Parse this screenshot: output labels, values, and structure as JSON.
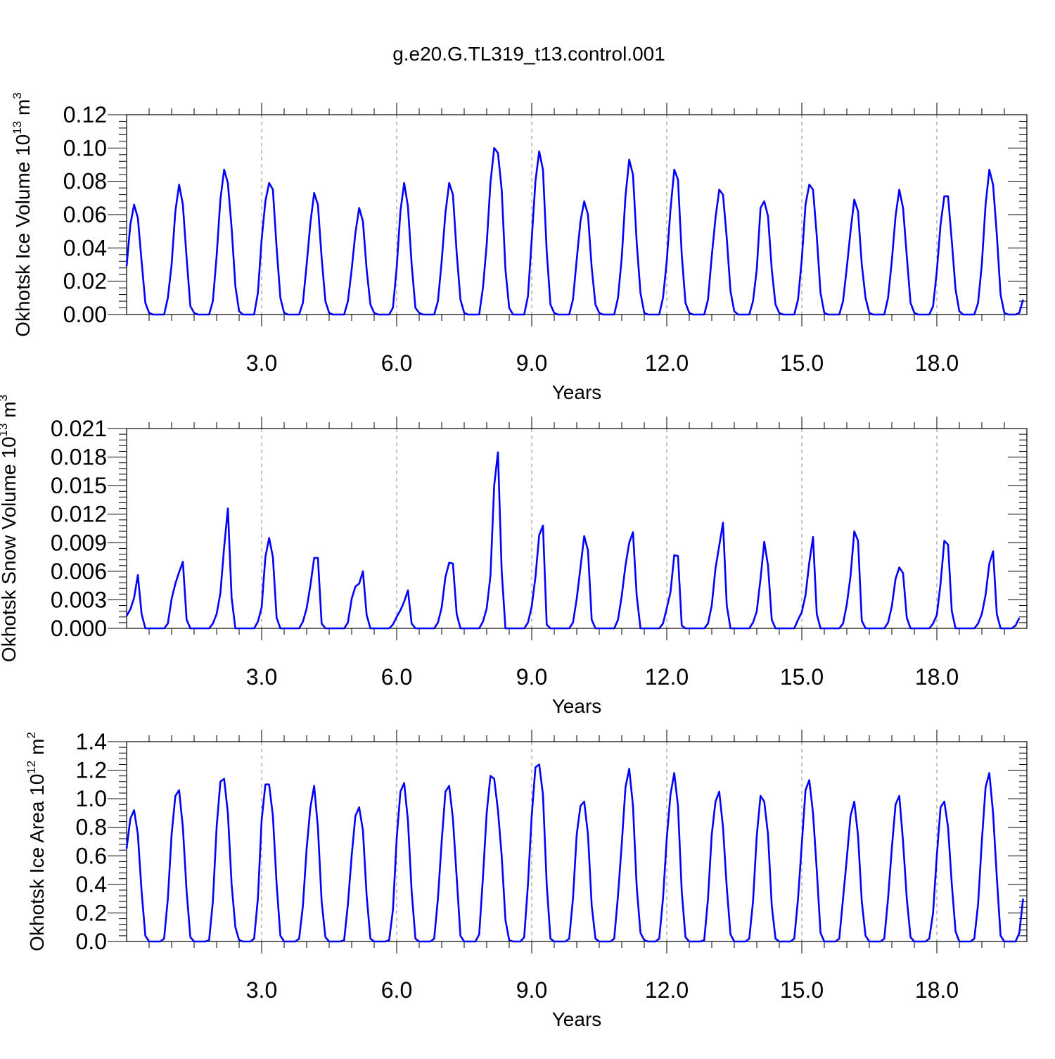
{
  "chart_title": "g.e20.G.TL319_t13.control.001",
  "colors": {
    "line": "#0000ff",
    "axis": "#000000",
    "refline": "#888888",
    "background": "#ffffff"
  },
  "chart_data": [
    {
      "type": "line",
      "ylabel": "Okhotsk Ice Volume 10",
      "ylabel_exp": "13",
      "ylabel_unit": " m",
      "ylabel_unit_exp": "3",
      "xlabel": "Years",
      "xlim": [
        0,
        20.0
      ],
      "ylim": [
        0,
        0.12
      ],
      "yticks": [
        "0.00",
        "0.02",
        "0.04",
        "0.06",
        "0.08",
        "0.10",
        "0.12"
      ],
      "xticks": [
        "3.0",
        "6.0",
        "9.0",
        "12.0",
        "15.0",
        "18.0"
      ],
      "grid": "dashed vertical lines at major x ticks",
      "series": [
        {
          "x_start": 0,
          "x_step": 0.08333,
          "values": [
            0.029,
            0.054,
            0.066,
            0.058,
            0.032,
            0.007,
            0.001,
            0.0,
            0.0,
            0.0,
            0.0,
            0.01,
            0.03,
            0.062,
            0.078,
            0.066,
            0.034,
            0.005,
            0.001,
            0.0,
            0.0,
            0.0,
            0.0,
            0.008,
            0.035,
            0.069,
            0.087,
            0.079,
            0.052,
            0.017,
            0.002,
            0.0,
            0.0,
            0.0,
            0.0,
            0.013,
            0.045,
            0.068,
            0.079,
            0.075,
            0.04,
            0.01,
            0.001,
            0.0,
            0.0,
            0.0,
            0.0,
            0.007,
            0.03,
            0.055,
            0.073,
            0.066,
            0.034,
            0.008,
            0.001,
            0.0,
            0.0,
            0.0,
            0.0,
            0.008,
            0.027,
            0.049,
            0.064,
            0.056,
            0.027,
            0.006,
            0.001,
            0.0,
            0.0,
            0.0,
            0.0,
            0.004,
            0.028,
            0.062,
            0.079,
            0.065,
            0.03,
            0.004,
            0.001,
            0.0,
            0.0,
            0.0,
            0.0,
            0.008,
            0.032,
            0.061,
            0.079,
            0.072,
            0.037,
            0.009,
            0.001,
            0.0,
            0.0,
            0.0,
            0.0,
            0.016,
            0.042,
            0.079,
            0.1,
            0.097,
            0.075,
            0.027,
            0.004,
            0.0,
            0.0,
            0.0,
            0.0,
            0.011,
            0.045,
            0.08,
            0.098,
            0.087,
            0.038,
            0.006,
            0.001,
            0.0,
            0.0,
            0.0,
            0.0,
            0.009,
            0.033,
            0.056,
            0.068,
            0.06,
            0.028,
            0.006,
            0.001,
            0.0,
            0.0,
            0.0,
            0.0,
            0.01,
            0.034,
            0.071,
            0.093,
            0.084,
            0.043,
            0.013,
            0.001,
            0.0,
            0.0,
            0.0,
            0.0,
            0.01,
            0.032,
            0.063,
            0.087,
            0.081,
            0.036,
            0.007,
            0.001,
            0.0,
            0.0,
            0.0,
            0.0,
            0.009,
            0.035,
            0.058,
            0.075,
            0.072,
            0.046,
            0.014,
            0.002,
            0.0,
            0.0,
            0.0,
            0.0,
            0.008,
            0.027,
            0.064,
            0.068,
            0.059,
            0.027,
            0.006,
            0.001,
            0.0,
            0.0,
            0.0,
            0.0,
            0.009,
            0.033,
            0.066,
            0.078,
            0.075,
            0.047,
            0.013,
            0.001,
            0.0,
            0.0,
            0.0,
            0.0,
            0.008,
            0.028,
            0.05,
            0.069,
            0.062,
            0.03,
            0.01,
            0.001,
            0.0,
            0.0,
            0.0,
            0.0,
            0.01,
            0.032,
            0.059,
            0.075,
            0.064,
            0.035,
            0.007,
            0.001,
            0.0,
            0.0,
            0.0,
            0.0,
            0.005,
            0.026,
            0.054,
            0.071,
            0.071,
            0.044,
            0.015,
            0.002,
            0.0,
            0.0,
            0.0,
            0.0,
            0.007,
            0.03,
            0.066,
            0.087,
            0.078,
            0.048,
            0.012,
            0.001,
            0.0,
            0.0,
            0.0,
            0.001,
            0.009
          ]
        }
      ]
    },
    {
      "type": "line",
      "ylabel": "Okhotsk Snow Volume 10",
      "ylabel_exp": "13",
      "ylabel_unit": " m",
      "ylabel_unit_exp": "3",
      "xlabel": "Years",
      "xlim": [
        0,
        20.0
      ],
      "ylim": [
        0,
        0.021
      ],
      "yticks": [
        "0.000",
        "0.003",
        "0.006",
        "0.009",
        "0.012",
        "0.015",
        "0.018",
        "0.021"
      ],
      "xticks": [
        "3.0",
        "6.0",
        "9.0",
        "12.0",
        "15.0",
        "18.0"
      ],
      "grid": "dashed vertical lines at major x ticks",
      "series": [
        {
          "x_start": 0,
          "x_step": 0.08333,
          "values": [
            0.0013,
            0.002,
            0.0032,
            0.0056,
            0.0015,
            0.0,
            0.0,
            0.0,
            0.0,
            0.0,
            0.0,
            0.0005,
            0.0031,
            0.0047,
            0.0059,
            0.007,
            0.0009,
            0.0,
            0.0,
            0.0,
            0.0,
            0.0,
            0.0,
            0.0005,
            0.0015,
            0.0037,
            0.0085,
            0.0126,
            0.0032,
            0.0,
            0.0,
            0.0,
            0.0,
            0.0,
            0.0,
            0.0007,
            0.0022,
            0.0075,
            0.0095,
            0.0075,
            0.0011,
            0.0,
            0.0,
            0.0,
            0.0,
            0.0,
            0.0,
            0.0007,
            0.0021,
            0.0045,
            0.0074,
            0.0074,
            0.0005,
            0.0,
            0.0,
            0.0,
            0.0,
            0.0,
            0.0,
            0.0006,
            0.0031,
            0.0044,
            0.0047,
            0.006,
            0.0014,
            0.0,
            0.0,
            0.0,
            0.0,
            0.0,
            0.0,
            0.0004,
            0.0012,
            0.0019,
            0.0028,
            0.004,
            0.0005,
            0.0,
            0.0,
            0.0,
            0.0,
            0.0,
            0.0,
            0.0006,
            0.0022,
            0.0054,
            0.0069,
            0.0068,
            0.0015,
            0.0,
            0.0,
            0.0,
            0.0,
            0.0,
            0.0,
            0.0007,
            0.0021,
            0.0055,
            0.015,
            0.0185,
            0.006,
            0.0,
            0.0,
            0.0,
            0.0,
            0.0,
            0.0,
            0.0006,
            0.0023,
            0.0054,
            0.0098,
            0.0108,
            0.0004,
            0.0,
            0.0,
            0.0,
            0.0,
            0.0,
            0.0,
            0.0006,
            0.0031,
            0.0064,
            0.0097,
            0.0082,
            0.0009,
            0.0,
            0.0,
            0.0,
            0.0,
            0.0,
            0.0,
            0.0009,
            0.0034,
            0.0066,
            0.009,
            0.0101,
            0.0034,
            0.0,
            0.0,
            0.0,
            0.0,
            0.0,
            0.0,
            0.0005,
            0.0021,
            0.0038,
            0.0077,
            0.0076,
            0.0003,
            0.0,
            0.0,
            0.0,
            0.0,
            0.0,
            0.0,
            0.0005,
            0.0024,
            0.0063,
            0.0087,
            0.0111,
            0.0024,
            0.0,
            0.0,
            0.0,
            0.0,
            0.0,
            0.0,
            0.0006,
            0.0018,
            0.0052,
            0.0091,
            0.0066,
            0.0009,
            0.0,
            0.0,
            0.0,
            0.0,
            0.0,
            0.0,
            0.0009,
            0.0017,
            0.0035,
            0.0069,
            0.0096,
            0.0015,
            0.0,
            0.0,
            0.0,
            0.0,
            0.0,
            0.0,
            0.0005,
            0.0025,
            0.0055,
            0.0102,
            0.0092,
            0.0008,
            0.0,
            0.0,
            0.0,
            0.0,
            0.0,
            0.0,
            0.0006,
            0.0023,
            0.0052,
            0.0064,
            0.0058,
            0.0011,
            0.0,
            0.0,
            0.0,
            0.0,
            0.0,
            0.0,
            0.0005,
            0.0014,
            0.0047,
            0.0092,
            0.0088,
            0.0018,
            0.0,
            0.0,
            0.0,
            0.0,
            0.0,
            0.0,
            0.0005,
            0.0015,
            0.0035,
            0.0068,
            0.0081,
            0.0015,
            0.0,
            0.0,
            0.0,
            0.0,
            0.0003,
            0.0011
          ]
        }
      ]
    },
    {
      "type": "line",
      "ylabel": "Okhotsk Ice Area 10",
      "ylabel_exp": "12",
      "ylabel_unit": " m",
      "ylabel_unit_exp": "2",
      "xlabel": "Years",
      "xlim": [
        0,
        20.0
      ],
      "ylim": [
        0,
        1.4
      ],
      "yticks": [
        "0.0",
        "0.2",
        "0.4",
        "0.6",
        "0.8",
        "1.0",
        "1.2",
        "1.4"
      ],
      "xticks": [
        "3.0",
        "6.0",
        "9.0",
        "12.0",
        "15.0",
        "18.0"
      ],
      "grid": "dashed vertical lines at major x ticks",
      "series": [
        {
          "x_start": 0,
          "x_step": 0.08333,
          "values": [
            0.65,
            0.86,
            0.92,
            0.75,
            0.35,
            0.04,
            0.0,
            0.0,
            0.0,
            0.0,
            0.02,
            0.3,
            0.75,
            1.02,
            1.06,
            0.8,
            0.35,
            0.03,
            0.0,
            0.0,
            0.0,
            0.0,
            0.01,
            0.28,
            0.8,
            1.12,
            1.14,
            0.9,
            0.4,
            0.1,
            0.01,
            0.0,
            0.0,
            0.0,
            0.02,
            0.3,
            0.85,
            1.1,
            1.1,
            0.88,
            0.4,
            0.04,
            0.0,
            0.0,
            0.0,
            0.0,
            0.02,
            0.25,
            0.65,
            0.94,
            1.09,
            0.8,
            0.28,
            0.03,
            0.0,
            0.0,
            0.0,
            0.0,
            0.01,
            0.26,
            0.6,
            0.88,
            0.94,
            0.78,
            0.32,
            0.02,
            0.0,
            0.0,
            0.0,
            0.0,
            0.01,
            0.22,
            0.72,
            1.05,
            1.11,
            0.85,
            0.35,
            0.02,
            0.0,
            0.0,
            0.0,
            0.0,
            0.02,
            0.3,
            0.7,
            1.05,
            1.09,
            0.86,
            0.45,
            0.04,
            0.0,
            0.0,
            0.0,
            0.0,
            0.05,
            0.45,
            0.9,
            1.16,
            1.14,
            0.92,
            0.6,
            0.15,
            0.01,
            0.0,
            0.0,
            0.0,
            0.03,
            0.4,
            0.88,
            1.22,
            1.24,
            1.03,
            0.4,
            0.02,
            0.0,
            0.0,
            0.0,
            0.0,
            0.02,
            0.3,
            0.75,
            0.95,
            0.98,
            0.75,
            0.25,
            0.02,
            0.0,
            0.0,
            0.0,
            0.0,
            0.02,
            0.32,
            0.68,
            1.08,
            1.21,
            0.95,
            0.38,
            0.06,
            0.01,
            0.0,
            0.0,
            0.0,
            0.02,
            0.3,
            0.72,
            1.03,
            1.18,
            0.95,
            0.35,
            0.03,
            0.0,
            0.0,
            0.0,
            0.0,
            0.01,
            0.3,
            0.75,
            0.98,
            1.05,
            0.8,
            0.38,
            0.05,
            0.0,
            0.0,
            0.0,
            0.0,
            0.02,
            0.28,
            0.74,
            1.02,
            0.98,
            0.75,
            0.25,
            0.02,
            0.0,
            0.0,
            0.0,
            0.0,
            0.02,
            0.3,
            0.68,
            1.06,
            1.13,
            0.9,
            0.5,
            0.06,
            0.0,
            0.0,
            0.0,
            0.0,
            0.02,
            0.3,
            0.58,
            0.88,
            0.98,
            0.74,
            0.28,
            0.04,
            0.0,
            0.0,
            0.0,
            0.0,
            0.02,
            0.3,
            0.65,
            0.96,
            1.02,
            0.7,
            0.3,
            0.03,
            0.0,
            0.0,
            0.0,
            0.0,
            0.02,
            0.2,
            0.6,
            0.94,
            0.98,
            0.8,
            0.4,
            0.07,
            0.0,
            0.0,
            0.0,
            0.0,
            0.02,
            0.26,
            0.7,
            1.08,
            1.18,
            0.9,
            0.45,
            0.04,
            0.0,
            0.0,
            0.0,
            0.0,
            0.06,
            0.3
          ]
        }
      ]
    }
  ]
}
